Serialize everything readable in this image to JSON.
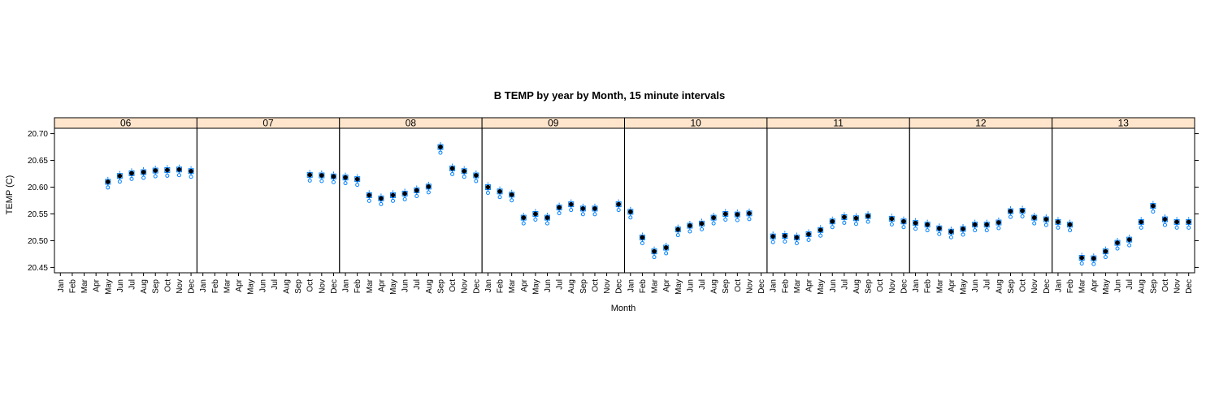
{
  "chart_data": {
    "type": "box",
    "title": "B TEMP by year by Month, 15 minute intervals",
    "xlabel": "Month",
    "ylabel": "TEMP (C)",
    "ylim": [
      20.44,
      20.71
    ],
    "yticks": [
      "20.45",
      "20.50",
      "20.55",
      "20.60",
      "20.65",
      "20.70"
    ],
    "months": [
      "Jan",
      "Feb",
      "Mar",
      "Apr",
      "May",
      "Jun",
      "Jul",
      "Aug",
      "Sep",
      "Oct",
      "Nov",
      "Dec"
    ],
    "panels": [
      {
        "year": "06",
        "medians": [
          null,
          null,
          null,
          null,
          20.61,
          20.621,
          20.626,
          20.628,
          20.631,
          20.632,
          20.633,
          20.63
        ]
      },
      {
        "year": "07",
        "medians": [
          null,
          null,
          null,
          null,
          null,
          null,
          null,
          null,
          null,
          20.623,
          20.622,
          20.62
        ]
      },
      {
        "year": "08",
        "medians": [
          20.618,
          20.615,
          20.585,
          20.579,
          20.585,
          20.588,
          20.594,
          20.601,
          20.675,
          20.635,
          20.63,
          20.622
        ]
      },
      {
        "year": "09",
        "medians": [
          20.6,
          20.592,
          20.586,
          20.543,
          20.55,
          20.543,
          20.562,
          20.568,
          20.56,
          20.56,
          null,
          20.568
        ]
      },
      {
        "year": "10",
        "medians": [
          20.554,
          20.506,
          20.48,
          20.487,
          20.521,
          20.528,
          20.532,
          20.543,
          20.55,
          20.549,
          20.551,
          null
        ]
      },
      {
        "year": "11",
        "medians": [
          20.508,
          20.509,
          20.506,
          20.512,
          20.52,
          20.536,
          20.544,
          20.542,
          20.546,
          null,
          20.541,
          20.536
        ]
      },
      {
        "year": "12",
        "medians": [
          20.533,
          20.53,
          20.523,
          20.517,
          20.522,
          20.53,
          20.53,
          20.534,
          20.555,
          20.556,
          20.543,
          20.54
        ]
      },
      {
        "year": "13",
        "medians": [
          20.535,
          20.53,
          20.468,
          20.467,
          20.48,
          20.496,
          20.502,
          20.535,
          20.565,
          20.54,
          20.535,
          20.535
        ]
      }
    ],
    "colors": {
      "strip": "#ffe5cc",
      "box": "#0080ff",
      "median": "#000000"
    }
  }
}
